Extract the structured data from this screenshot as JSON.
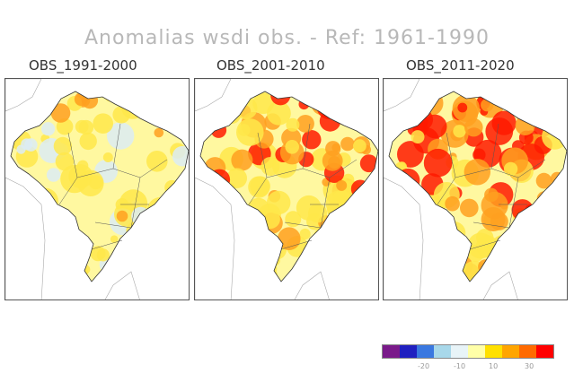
{
  "title": "Anomalias wsdi obs. - Ref: 1961-1990",
  "panels": [
    {
      "label": "OBS_1991-2000",
      "intensity": 0.35
    },
    {
      "label": "OBS_2001-2010",
      "intensity": 0.7
    },
    {
      "label": "OBS_2011-2020",
      "intensity": 0.9
    }
  ],
  "legend": {
    "colors": [
      "#7a1a8a",
      "#2020c0",
      "#3a78e0",
      "#a8d8ea",
      "#e8f4f8",
      "#ffffa8",
      "#ffe000",
      "#ffa500",
      "#ff6a00",
      "#ff0000"
    ],
    "ticks": [
      "-20",
      "-10",
      "10",
      "30"
    ]
  },
  "palette": {
    "land": "#fff8a0",
    "yellow": "#ffe84a",
    "orange": "#ffa020",
    "red": "#ff1a00",
    "blue": "#dcecf4"
  }
}
